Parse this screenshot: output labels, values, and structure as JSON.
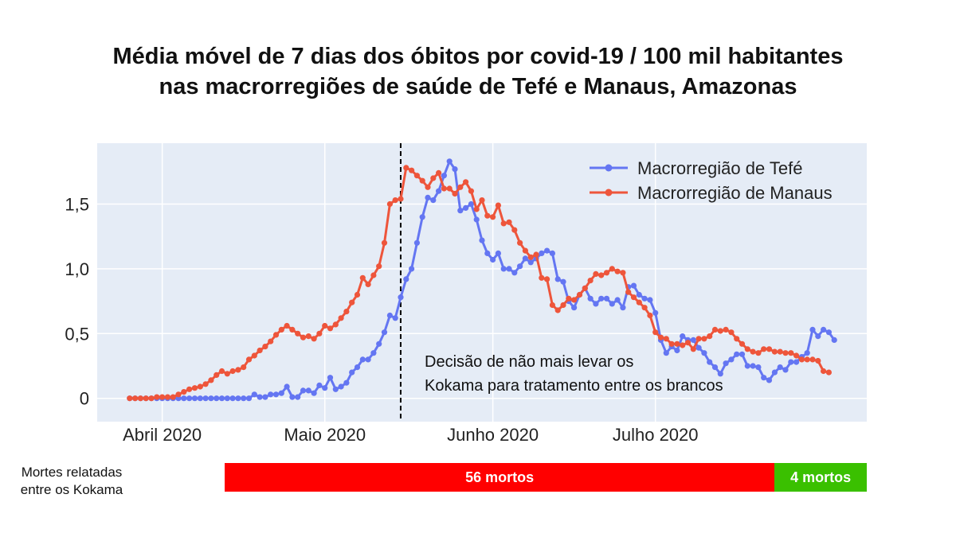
{
  "title_lines": [
    "Média móvel de 7 dias dos óbitos por covid-19 / 100 mil habitantes",
    "nas macrorregiões de saúde de Tefé e Manaus, Amazonas"
  ],
  "colors": {
    "tefe": "#6476f2",
    "manaus": "#ee553b",
    "plot_bg": "#e5ecf6",
    "grid": "#ffffff",
    "bar_red": "#ff0000",
    "bar_green": "#3ac000"
  },
  "annotation": {
    "line1": "Decisão de não mais levar os",
    "line2": "Kokama para tratamento entre os brancos"
  },
  "deaths_bar": {
    "label_line1": "Mortes relatadas",
    "label_line2": "entre os Kokama",
    "segments": [
      {
        "label": "56 mortos",
        "from_day": 3,
        "to_day": 152,
        "color": "#ff0000"
      },
      {
        "label": "4 mortos",
        "from_day": 152,
        "to_day": 177,
        "color": "#3ac000"
      }
    ]
  },
  "chart_data": {
    "type": "line",
    "title": "Média móvel de 7 dias dos óbitos por covid-19 / 100 mil habitantes nas macrorregiões de saúde de Tefé e Manaus, Amazonas",
    "xlabel": "",
    "ylabel": "",
    "x_unit": "day_of_year_2020 (Apr 1 = 92)",
    "xlim": [
      80,
      222
    ],
    "ylim": [
      -0.18,
      1.97
    ],
    "xticks": [
      {
        "day": 92,
        "label": "Abril 2020"
      },
      {
        "day": 122,
        "label": "Maio 2020"
      },
      {
        "day": 153,
        "label": "Junho 2020"
      },
      {
        "day": 183,
        "label": "Julho 2020"
      }
    ],
    "yticks": [
      {
        "value": 0,
        "label": "0"
      },
      {
        "value": 0.5,
        "label": "0,5"
      },
      {
        "value": 1.0,
        "label": "1,0"
      },
      {
        "value": 1.5,
        "label": "1,5"
      }
    ],
    "vline_day": 136,
    "series": [
      {
        "name": "Macrorregião de Tefé",
        "start_day": 86,
        "values": [
          0,
          0,
          0,
          0,
          0,
          0,
          0,
          0,
          0,
          0,
          0,
          0,
          0,
          0,
          0,
          0,
          0,
          0,
          0,
          0,
          0,
          0,
          0,
          0.03,
          0.01,
          0.01,
          0.03,
          0.03,
          0.04,
          0.09,
          0.01,
          0.01,
          0.06,
          0.06,
          0.04,
          0.1,
          0.08,
          0.16,
          0.07,
          0.09,
          0.12,
          0.2,
          0.24,
          0.3,
          0.3,
          0.35,
          0.42,
          0.51,
          0.64,
          0.62,
          0.78,
          0.92,
          1.0,
          1.2,
          1.4,
          1.55,
          1.53,
          1.6,
          1.72,
          1.83,
          1.77,
          1.45,
          1.47,
          1.5,
          1.38,
          1.22,
          1.12,
          1.07,
          1.12,
          1.0,
          1.0,
          0.97,
          1.02,
          1.08,
          1.05,
          1.08,
          1.12,
          1.14,
          1.12,
          0.92,
          0.9,
          0.75,
          0.7,
          0.8,
          0.85,
          0.77,
          0.73,
          0.77,
          0.77,
          0.73,
          0.76,
          0.7,
          0.86,
          0.87,
          0.8,
          0.77,
          0.76,
          0.66,
          0.45,
          0.35,
          0.4,
          0.37,
          0.48,
          0.45,
          0.45,
          0.39,
          0.35,
          0.28,
          0.24,
          0.19,
          0.27,
          0.3,
          0.34,
          0.34,
          0.25,
          0.25,
          0.24,
          0.16,
          0.14,
          0.2,
          0.24,
          0.22,
          0.28,
          0.28,
          0.32,
          0.35,
          0.53,
          0.48,
          0.53,
          0.51,
          0.45
        ]
      },
      {
        "name": "Macrorregião de Manaus",
        "start_day": 86,
        "values": [
          0,
          0,
          0,
          0,
          0,
          0.01,
          0.01,
          0.01,
          0.01,
          0.03,
          0.05,
          0.07,
          0.08,
          0.09,
          0.11,
          0.14,
          0.18,
          0.21,
          0.19,
          0.21,
          0.22,
          0.24,
          0.3,
          0.33,
          0.37,
          0.4,
          0.44,
          0.49,
          0.53,
          0.56,
          0.53,
          0.5,
          0.47,
          0.48,
          0.46,
          0.5,
          0.56,
          0.54,
          0.57,
          0.62,
          0.67,
          0.74,
          0.8,
          0.93,
          0.88,
          0.95,
          1.02,
          1.2,
          1.5,
          1.53,
          1.54,
          1.78,
          1.76,
          1.72,
          1.68,
          1.63,
          1.7,
          1.74,
          1.62,
          1.62,
          1.58,
          1.63,
          1.67,
          1.6,
          1.46,
          1.53,
          1.41,
          1.4,
          1.49,
          1.35,
          1.36,
          1.3,
          1.2,
          1.14,
          1.09,
          1.11,
          0.93,
          0.92,
          0.72,
          0.68,
          0.72,
          0.77,
          0.76,
          0.8,
          0.85,
          0.91,
          0.96,
          0.95,
          0.97,
          1.0,
          0.98,
          0.97,
          0.82,
          0.78,
          0.74,
          0.7,
          0.64,
          0.51,
          0.47,
          0.46,
          0.42,
          0.42,
          0.41,
          0.43,
          0.38,
          0.46,
          0.46,
          0.48,
          0.53,
          0.52,
          0.53,
          0.51,
          0.46,
          0.42,
          0.38,
          0.36,
          0.35,
          0.38,
          0.38,
          0.36,
          0.36,
          0.35,
          0.35,
          0.33,
          0.3,
          0.3,
          0.3,
          0.29,
          0.21,
          0.2
        ]
      }
    ]
  }
}
